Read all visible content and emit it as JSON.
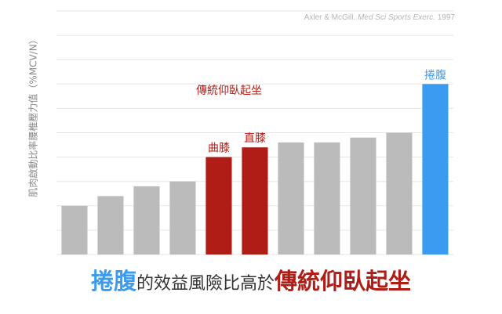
{
  "source": {
    "authors": "Axler & McGill.",
    "journal": "Med Sci Sports Exerc.",
    "year": "1997"
  },
  "chart_data": {
    "type": "bar",
    "ylabel": "肌肉啟動比率腰椎壓力值（%MCV/N）",
    "ylim": [
      0,
      10
    ],
    "grid": true,
    "categories": [
      "",
      "",
      "",
      "",
      "",
      "",
      "",
      "",
      "",
      "",
      ""
    ],
    "values": [
      2.0,
      2.4,
      2.8,
      3.0,
      4.0,
      4.4,
      4.6,
      4.6,
      4.8,
      5.0,
      7.0
    ],
    "colors": [
      "#bbbbbb",
      "#bbbbbb",
      "#bbbbbb",
      "#bbbbbb",
      "#b01c16",
      "#b01c16",
      "#bbbbbb",
      "#bbbbbb",
      "#bbbbbb",
      "#bbbbbb",
      "#3a9bf0"
    ],
    "bar_labels": [
      "",
      "",
      "",
      "",
      "曲膝",
      "直膝",
      "",
      "",
      "",
      "",
      "捲腹"
    ],
    "group_annotation": "傳統仰臥起坐"
  },
  "headline": {
    "part1": "捲腹",
    "part2": "的效益風險比高於",
    "part3": "傳統仰臥起坐"
  },
  "colors": {
    "gray_bar": "#bbbbbb",
    "red_bar": "#b01c16",
    "blue_bar": "#3a9bf0"
  }
}
